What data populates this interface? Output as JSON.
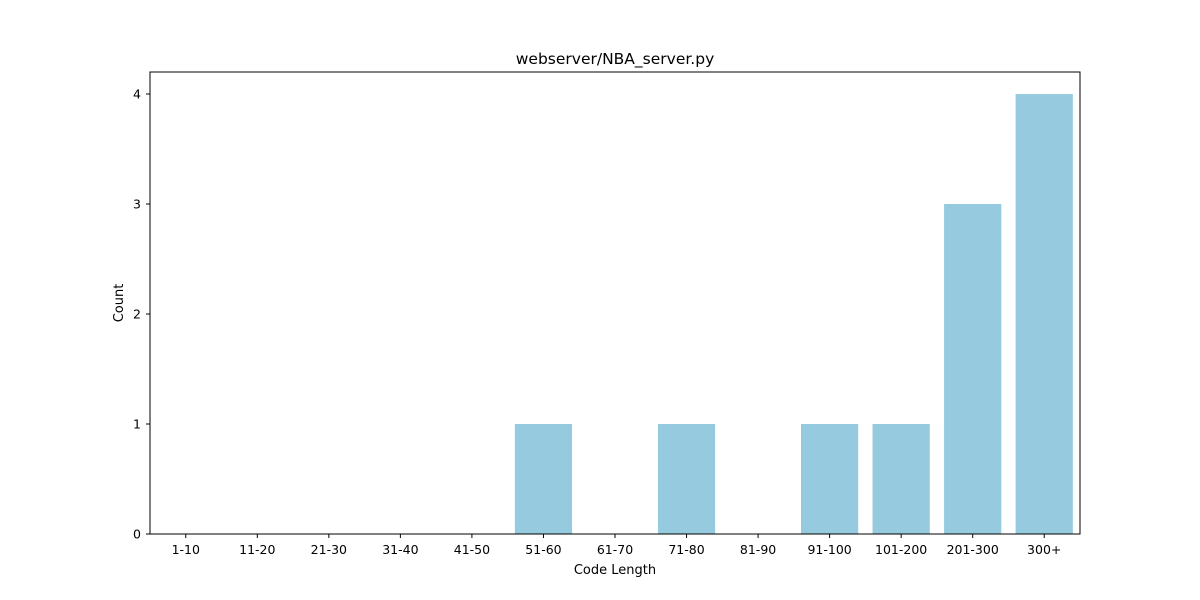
{
  "chart_data": {
    "type": "bar",
    "title": "webserver/NBA_server.py",
    "xlabel": "Code Length",
    "ylabel": "Count",
    "categories": [
      "1-10",
      "11-20",
      "21-30",
      "31-40",
      "41-50",
      "51-60",
      "61-70",
      "71-80",
      "81-90",
      "91-100",
      "101-200",
      "201-300",
      "300+"
    ],
    "values": [
      0,
      0,
      0,
      0,
      0,
      1,
      0,
      1,
      0,
      1,
      1,
      3,
      4
    ],
    "ylim": [
      0,
      4.2
    ],
    "yticks": [
      "0",
      "1",
      "2",
      "3",
      "4"
    ],
    "bar_color": "#96cade",
    "grid": false,
    "legend": false
  }
}
